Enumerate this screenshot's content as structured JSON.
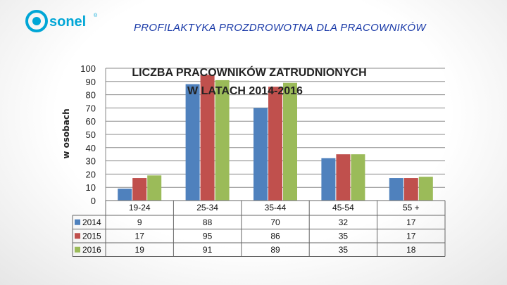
{
  "brand": {
    "logo_text": "sonel",
    "logo_color": "#00a6d6"
  },
  "slide": {
    "title": "PROFILAKTYKA PROZDROWOTNA DLA PRACOWNIKÓW",
    "title_color": "#1a3aa8"
  },
  "chart_data": {
    "type": "bar",
    "title_line1": "LICZBA PRACOWNIKÓW ZATRUDNIONYCH",
    "title_line2": "W LATACH 2014-2016",
    "ylabel": "w osobach",
    "ylim": [
      0,
      100
    ],
    "yticks": [
      0,
      10,
      20,
      30,
      40,
      50,
      60,
      70,
      80,
      90,
      100
    ],
    "categories": [
      "19-24",
      "25-34",
      "35-44",
      "45-54",
      "55 +"
    ],
    "series": [
      {
        "name": "2014",
        "color": "#4f81bd",
        "values": [
          9,
          88,
          70,
          32,
          17
        ]
      },
      {
        "name": "2015",
        "color": "#c0504d",
        "values": [
          17,
          95,
          86,
          35,
          17
        ]
      },
      {
        "name": "2016",
        "color": "#9bbb59",
        "values": [
          19,
          91,
          89,
          35,
          18
        ]
      }
    ],
    "grid": true,
    "legend": "data-table-left"
  }
}
